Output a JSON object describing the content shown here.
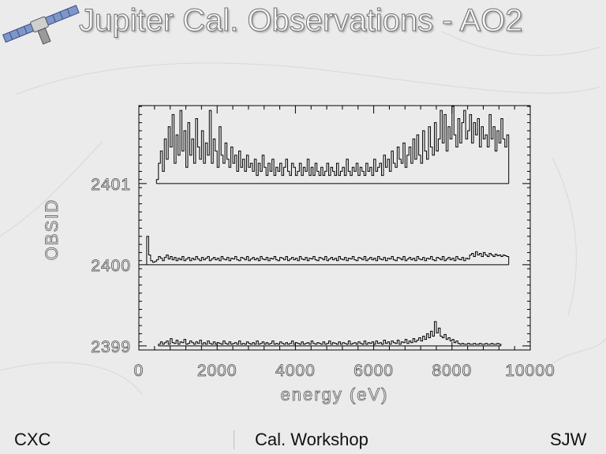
{
  "slide": {
    "title": "Jupiter Cal. Observations - AO2",
    "footer_left": "CXC",
    "footer_center": "Cal. Workshop",
    "footer_right": "SJW"
  },
  "logo": {
    "icon": "satellite-icon"
  },
  "colors": {
    "background": "#ebebeb",
    "plot_ink": "#000000",
    "axis_text": "#2a2a2a"
  },
  "chart_data": {
    "type": "line",
    "title": "",
    "xlabel": "energy (eV)",
    "ylabel": "OBSID",
    "xlim": [
      0,
      10000
    ],
    "ylim": [
      2398.95,
      2401.96
    ],
    "x_ticks": [
      0,
      2000,
      4000,
      6000,
      8000,
      10000
    ],
    "x_tick_labels": [
      "0",
      "2000",
      "4000",
      "6000",
      "8000",
      "10000"
    ],
    "y_ticks": [
      2399,
      2400,
      2401
    ],
    "y_tick_labels": [
      "2399",
      "2400",
      "2401"
    ],
    "grid": false,
    "series": [
      {
        "baseline": 2399,
        "x_start": 500,
        "x_end": 9400,
        "x_step": 50,
        "values": [
          0.02,
          0.05,
          0.02,
          0.04,
          0.06,
          0.02,
          0.09,
          0.04,
          0.03,
          0.07,
          0.02,
          0.05,
          0.04,
          0.08,
          0.02,
          0.03,
          0.06,
          0.04,
          0.02,
          0.05,
          0.03,
          0.07,
          0.02,
          0.04,
          0.02,
          0.06,
          0.03,
          0.02,
          0.05,
          0.02,
          0.04,
          0.03,
          0.02,
          0.06,
          0.03,
          0.02,
          0.05,
          0.02,
          0.03,
          0.04,
          0.02,
          0.06,
          0.02,
          0.03,
          0.02,
          0.05,
          0.03,
          0.02,
          0.04,
          0.02,
          0.06,
          0.02,
          0.03,
          0.05,
          0.02,
          0.04,
          0.02,
          0.03,
          0.06,
          0.02,
          0.03,
          0.02,
          0.05,
          0.03,
          0.02,
          0.04,
          0.02,
          0.03,
          0.06,
          0.02,
          0.04,
          0.03,
          0.02,
          0.05,
          0.02,
          0.03,
          0.04,
          0.02,
          0.06,
          0.03,
          0.02,
          0.04,
          0.03,
          0.02,
          0.05,
          0.02,
          0.03,
          0.06,
          0.02,
          0.04,
          0.03,
          0.02,
          0.05,
          0.02,
          0.04,
          0.03,
          0.02,
          0.06,
          0.02,
          0.03,
          0.04,
          0.02,
          0.05,
          0.03,
          0.02,
          0.06,
          0.02,
          0.04,
          0.03,
          0.05,
          0.02,
          0.06,
          0.03,
          0.04,
          0.02,
          0.07,
          0.03,
          0.05,
          0.02,
          0.06,
          0.04,
          0.03,
          0.07,
          0.02,
          0.05,
          0.04,
          0.08,
          0.03,
          0.06,
          0.04,
          0.09,
          0.05,
          0.07,
          0.1,
          0.06,
          0.12,
          0.08,
          0.15,
          0.1,
          0.18,
          0.12,
          0.3,
          0.16,
          0.22,
          0.12,
          0.1,
          0.14,
          0.08,
          0.1,
          0.06,
          0.08,
          0.04,
          0.06,
          0.03,
          0.02,
          0.03,
          0.02,
          0.02,
          0.03,
          0.02,
          0.02,
          0.03,
          0.02,
          0.02,
          0.03,
          0.02,
          0.02,
          0.03,
          0.02,
          0.02,
          0.03,
          0.02,
          0.02,
          0.03,
          0.02
        ]
      },
      {
        "baseline": 2400,
        "x_start": 200,
        "x_end": 9400,
        "x_step": 50,
        "values": [
          0.35,
          0.12,
          0.05,
          0.03,
          0.04,
          0.06,
          0.1,
          0.08,
          0.05,
          0.09,
          0.12,
          0.07,
          0.1,
          0.06,
          0.09,
          0.05,
          0.08,
          0.06,
          0.1,
          0.05,
          0.07,
          0.09,
          0.05,
          0.08,
          0.06,
          0.1,
          0.07,
          0.05,
          0.09,
          0.06,
          0.08,
          0.1,
          0.05,
          0.07,
          0.09,
          0.06,
          0.08,
          0.05,
          0.1,
          0.07,
          0.06,
          0.09,
          0.05,
          0.08,
          0.07,
          0.1,
          0.06,
          0.05,
          0.09,
          0.08,
          0.06,
          0.1,
          0.05,
          0.07,
          0.09,
          0.06,
          0.08,
          0.05,
          0.1,
          0.07,
          0.06,
          0.09,
          0.05,
          0.08,
          0.07,
          0.1,
          0.06,
          0.05,
          0.09,
          0.08,
          0.06,
          0.1,
          0.05,
          0.07,
          0.09,
          0.06,
          0.08,
          0.05,
          0.1,
          0.07,
          0.06,
          0.09,
          0.05,
          0.08,
          0.07,
          0.1,
          0.06,
          0.05,
          0.09,
          0.08,
          0.06,
          0.1,
          0.05,
          0.07,
          0.09,
          0.06,
          0.08,
          0.05,
          0.1,
          0.07,
          0.06,
          0.09,
          0.05,
          0.08,
          0.07,
          0.1,
          0.06,
          0.05,
          0.09,
          0.08,
          0.06,
          0.1,
          0.05,
          0.07,
          0.09,
          0.06,
          0.08,
          0.05,
          0.1,
          0.07,
          0.06,
          0.09,
          0.05,
          0.08,
          0.07,
          0.1,
          0.06,
          0.05,
          0.09,
          0.08,
          0.06,
          0.1,
          0.05,
          0.07,
          0.09,
          0.06,
          0.08,
          0.05,
          0.1,
          0.07,
          0.06,
          0.09,
          0.05,
          0.08,
          0.07,
          0.1,
          0.06,
          0.05,
          0.09,
          0.08,
          0.06,
          0.1,
          0.05,
          0.07,
          0.09,
          0.06,
          0.08,
          0.05,
          0.1,
          0.07,
          0.06,
          0.09,
          0.05,
          0.08,
          0.07,
          0.12,
          0.14,
          0.1,
          0.16,
          0.12,
          0.14,
          0.1,
          0.15,
          0.12,
          0.1,
          0.14,
          0.12,
          0.1,
          0.13,
          0.11,
          0.12,
          0.1,
          0.12,
          0.11,
          0.1
        ]
      },
      {
        "baseline": 2401,
        "x_start": 450,
        "x_end": 9400,
        "x_step": 50,
        "values": [
          0.05,
          0.25,
          0.4,
          0.15,
          0.55,
          0.3,
          0.7,
          0.45,
          0.85,
          0.25,
          0.6,
          0.35,
          0.9,
          0.4,
          0.65,
          0.2,
          0.75,
          0.35,
          0.55,
          0.25,
          0.8,
          0.45,
          0.3,
          0.65,
          0.25,
          0.5,
          0.35,
          0.9,
          0.25,
          0.55,
          0.4,
          0.2,
          0.7,
          0.35,
          0.25,
          0.5,
          0.3,
          0.2,
          0.45,
          0.25,
          0.35,
          0.15,
          0.4,
          0.2,
          0.3,
          0.15,
          0.35,
          0.2,
          0.25,
          0.15,
          0.3,
          0.1,
          0.25,
          0.15,
          0.35,
          0.2,
          0.1,
          0.25,
          0.15,
          0.3,
          0.1,
          0.2,
          0.15,
          0.25,
          0.1,
          0.2,
          0.3,
          0.15,
          0.1,
          0.25,
          0.2,
          0.1,
          0.15,
          0.25,
          0.1,
          0.2,
          0.15,
          0.3,
          0.1,
          0.2,
          0.1,
          0.25,
          0.15,
          0.1,
          0.2,
          0.1,
          0.15,
          0.25,
          0.1,
          0.2,
          0.15,
          0.1,
          0.25,
          0.1,
          0.15,
          0.2,
          0.1,
          0.3,
          0.15,
          0.1,
          0.2,
          0.15,
          0.25,
          0.1,
          0.2,
          0.15,
          0.1,
          0.25,
          0.15,
          0.2,
          0.1,
          0.3,
          0.15,
          0.2,
          0.25,
          0.1,
          0.35,
          0.2,
          0.3,
          0.15,
          0.4,
          0.25,
          0.2,
          0.45,
          0.3,
          0.25,
          0.5,
          0.2,
          0.35,
          0.45,
          0.25,
          0.55,
          0.3,
          0.6,
          0.35,
          0.25,
          0.65,
          0.4,
          0.3,
          0.7,
          0.45,
          0.35,
          0.75,
          0.4,
          0.55,
          0.9,
          0.5,
          0.85,
          0.4,
          0.7,
          0.55,
          0.95,
          0.6,
          0.45,
          0.8,
          0.5,
          0.75,
          0.9,
          0.55,
          0.65,
          0.85,
          0.5,
          0.75,
          0.6,
          0.8,
          0.45,
          0.7,
          0.55,
          0.6,
          0.45,
          0.85,
          0.55,
          0.7,
          0.4,
          0.65,
          0.5,
          0.8,
          0.55,
          0.45,
          0.6
        ]
      }
    ]
  }
}
